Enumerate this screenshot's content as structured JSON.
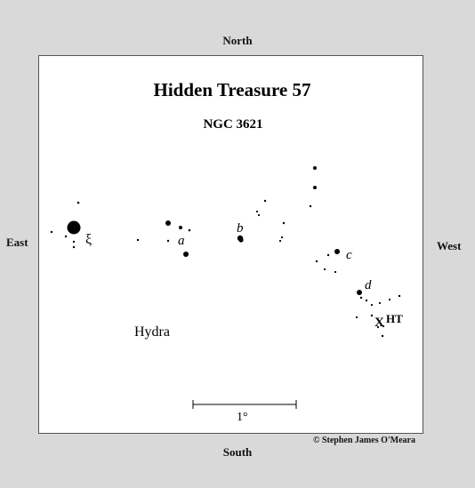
{
  "compass": {
    "north": "North",
    "south": "South",
    "east": "East",
    "west": "West"
  },
  "title": "Hidden Treasure 57",
  "subtitle": "NGC 3621",
  "constellation": "Hydra",
  "scale_bar_label": "1°",
  "credit": "© Stephen James O'Meara",
  "star_labels": {
    "xi": "ξ",
    "a": "a",
    "b": "b",
    "c": "c",
    "d": "d"
  },
  "target_marker": "X",
  "target_label": "HT",
  "colors": {
    "background": "#d9d9d9",
    "chart": "#ffffff",
    "ink": "#000000"
  }
}
